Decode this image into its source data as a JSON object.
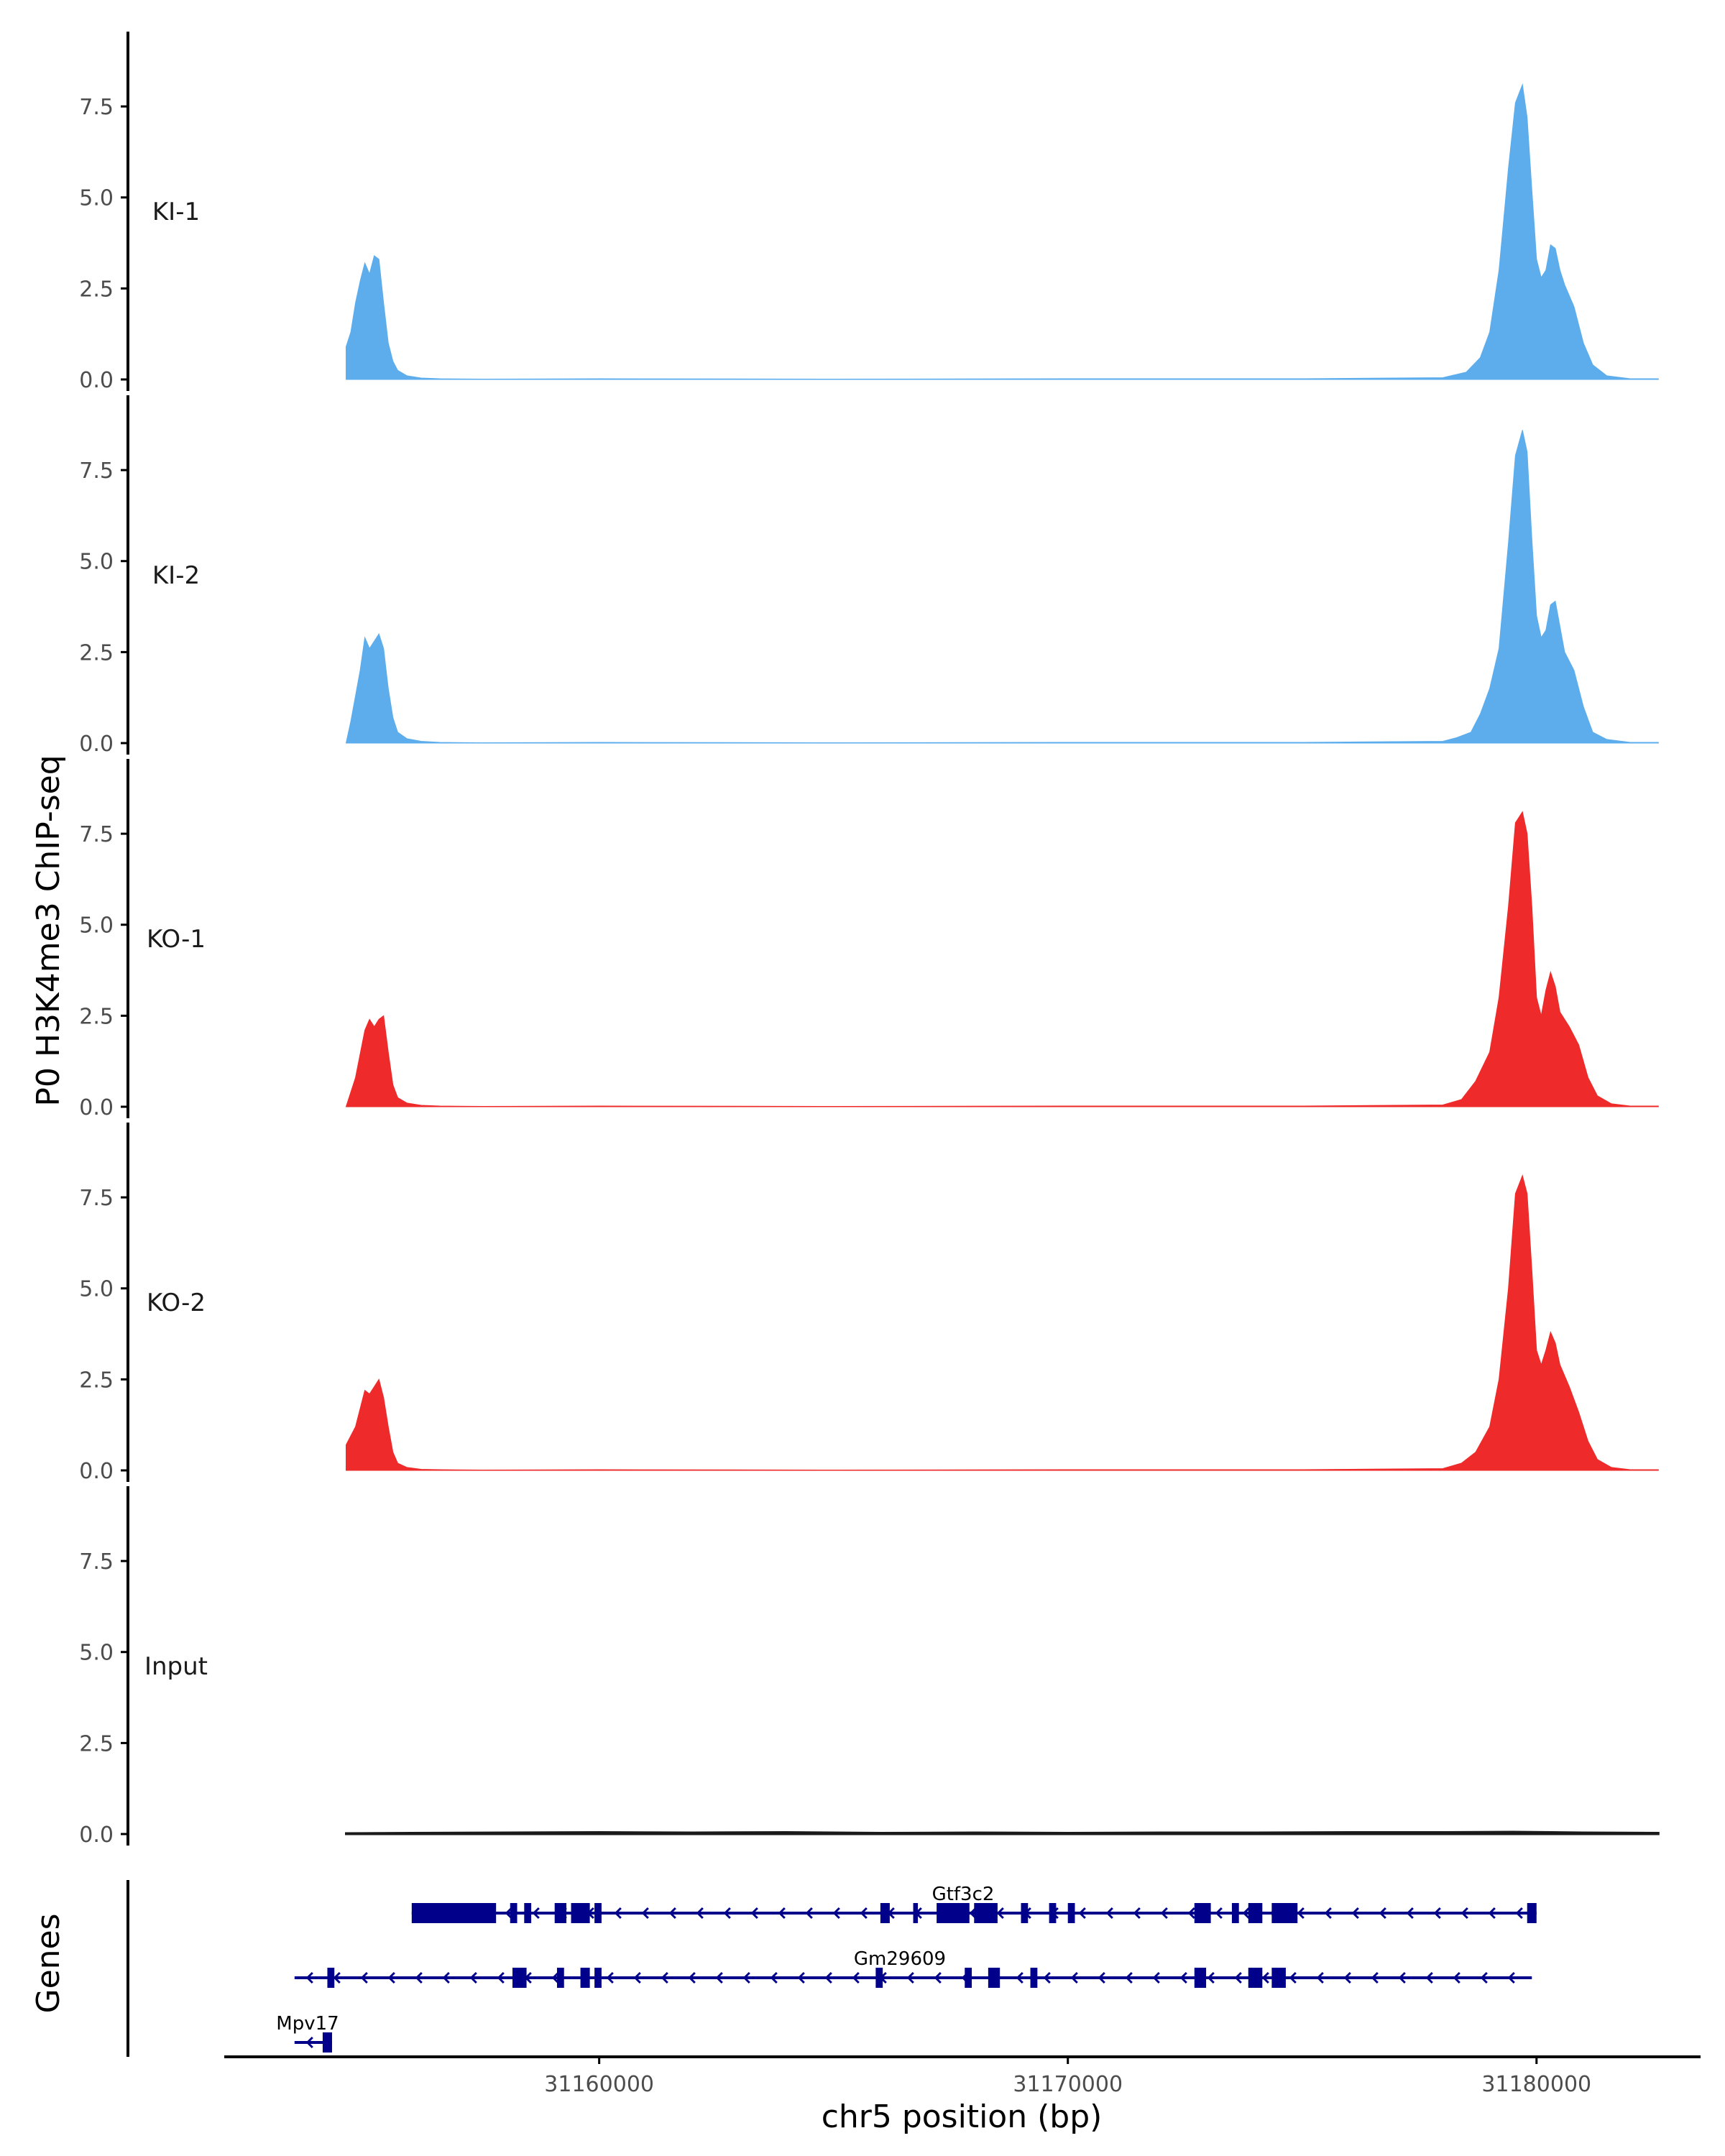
{
  "chart_data": {
    "type": "area",
    "ylabel": "P0 H3K4me3 ChIP-seq",
    "xlabel": "chr5 position (bp)",
    "genes_label": "Genes",
    "xlim": [
      31152000,
      31183500
    ],
    "ylim": [
      0,
      9.2
    ],
    "yticks": [
      0.0,
      2.5,
      5.0,
      7.5
    ],
    "ytick_labels": [
      "0.0",
      "2.5",
      "5.0",
      "7.5"
    ],
    "xticks": [
      31160000,
      31170000,
      31180000
    ],
    "xtick_labels": [
      "31160000",
      "31170000",
      "31180000"
    ],
    "series": [
      {
        "name": "KI-1",
        "color": "#5DADEC",
        "x": [
          31154600,
          31154700,
          31154800,
          31154900,
          31155000,
          31155100,
          31155200,
          31155300,
          31155400,
          31155500,
          31155600,
          31155700,
          31155900,
          31156200,
          31156600,
          31157500,
          31160000,
          31165000,
          31170000,
          31175000,
          31178000,
          31178500,
          31178800,
          31179000,
          31179200,
          31179400,
          31179550,
          31179700,
          31179800,
          31179900,
          31180000,
          31180100,
          31180200,
          31180300,
          31180400,
          31180500,
          31180600,
          31180800,
          31181000,
          31181200,
          31181500,
          31182000,
          31182600
        ],
        "y": [
          0.9,
          1.3,
          2.1,
          2.7,
          3.2,
          2.9,
          3.4,
          3.3,
          2.1,
          1.0,
          0.5,
          0.25,
          0.1,
          0.04,
          0.02,
          0.01,
          0.02,
          0.01,
          0.02,
          0.02,
          0.05,
          0.2,
          0.6,
          1.3,
          3.0,
          5.8,
          7.6,
          8.1,
          7.2,
          5.2,
          3.3,
          2.8,
          3.0,
          3.7,
          3.6,
          3.0,
          2.6,
          2.0,
          1.0,
          0.4,
          0.1,
          0.02,
          0.02
        ]
      },
      {
        "name": "KI-2",
        "color": "#5DADEC",
        "x": [
          31154600,
          31154700,
          31154800,
          31154900,
          31155000,
          31155100,
          31155200,
          31155300,
          31155400,
          31155500,
          31155600,
          31155700,
          31155900,
          31156200,
          31156600,
          31157500,
          31160000,
          31165000,
          31170000,
          31175000,
          31178000,
          31178300,
          31178600,
          31178800,
          31179000,
          31179200,
          31179400,
          31179550,
          31179700,
          31179800,
          31179900,
          31180000,
          31180100,
          31180200,
          31180300,
          31180400,
          31180500,
          31180600,
          31180800,
          31181000,
          31181200,
          31181500,
          31182000,
          31182600
        ],
        "y": [
          0.0,
          0.6,
          1.3,
          2.0,
          2.9,
          2.6,
          2.8,
          3.0,
          2.6,
          1.5,
          0.7,
          0.3,
          0.12,
          0.05,
          0.02,
          0.01,
          0.02,
          0.01,
          0.02,
          0.02,
          0.05,
          0.15,
          0.3,
          0.8,
          1.5,
          2.6,
          5.5,
          7.9,
          8.6,
          8.0,
          5.6,
          3.5,
          2.9,
          3.1,
          3.8,
          3.9,
          3.2,
          2.5,
          2.0,
          1.0,
          0.3,
          0.1,
          0.02,
          0.02
        ]
      },
      {
        "name": "KO-1",
        "color": "#EE2A2A",
        "x": [
          31154600,
          31154800,
          31155000,
          31155100,
          31155200,
          31155300,
          31155400,
          31155500,
          31155600,
          31155700,
          31155900,
          31156200,
          31156600,
          31157500,
          31160000,
          31165000,
          31170000,
          31175000,
          31178000,
          31178400,
          31178700,
          31179000,
          31179200,
          31179400,
          31179550,
          31179700,
          31179800,
          31179900,
          31180000,
          31180100,
          31180200,
          31180300,
          31180400,
          31180500,
          31180700,
          31180900,
          31181100,
          31181300,
          31181600,
          31182000,
          31182600
        ],
        "y": [
          0.0,
          0.8,
          2.1,
          2.4,
          2.2,
          2.4,
          2.5,
          1.5,
          0.6,
          0.25,
          0.1,
          0.04,
          0.02,
          0.01,
          0.02,
          0.01,
          0.02,
          0.02,
          0.05,
          0.2,
          0.7,
          1.5,
          3.0,
          5.5,
          7.8,
          8.1,
          7.5,
          5.5,
          3.0,
          2.5,
          3.2,
          3.7,
          3.3,
          2.6,
          2.2,
          1.7,
          0.8,
          0.3,
          0.08,
          0.02,
          0.02
        ]
      },
      {
        "name": "KO-2",
        "color": "#EE2A2A",
        "x": [
          31154600,
          31154800,
          31155000,
          31155100,
          31155200,
          31155300,
          31155400,
          31155500,
          31155600,
          31155700,
          31155900,
          31156200,
          31156600,
          31157500,
          31160000,
          31165000,
          31170000,
          31175000,
          31178000,
          31178400,
          31178700,
          31179000,
          31179200,
          31179400,
          31179550,
          31179700,
          31179800,
          31179900,
          31180000,
          31180100,
          31180200,
          31180300,
          31180400,
          31180500,
          31180700,
          31180900,
          31181100,
          31181300,
          31181600,
          31182000,
          31182600
        ],
        "y": [
          0.7,
          1.2,
          2.2,
          2.1,
          2.3,
          2.5,
          2.0,
          1.2,
          0.5,
          0.2,
          0.08,
          0.03,
          0.02,
          0.01,
          0.02,
          0.01,
          0.02,
          0.02,
          0.05,
          0.2,
          0.5,
          1.2,
          2.5,
          5.0,
          7.6,
          8.1,
          7.6,
          5.5,
          3.3,
          2.9,
          3.3,
          3.8,
          3.5,
          2.9,
          2.3,
          1.6,
          0.8,
          0.3,
          0.08,
          0.02,
          0.02
        ]
      },
      {
        "name": "Input",
        "color": "#1a1a1a",
        "x": [
          31154600,
          31156000,
          31158000,
          31160000,
          31162000,
          31164000,
          31166000,
          31168000,
          31170000,
          31172000,
          31174000,
          31176000,
          31178000,
          31179500,
          31181000,
          31182600
        ],
        "y": [
          0.02,
          0.03,
          0.04,
          0.05,
          0.04,
          0.05,
          0.03,
          0.04,
          0.03,
          0.04,
          0.04,
          0.05,
          0.05,
          0.06,
          0.04,
          0.03
        ]
      }
    ],
    "genes": [
      {
        "name": "Gtf3c2",
        "row": 0,
        "start": 31156000,
        "end": 31180000,
        "strand": "-",
        "exons": [
          [
            31156000,
            31157800
          ],
          [
            31158100,
            31158250
          ],
          [
            31158400,
            31158550
          ],
          [
            31159050,
            31159300
          ],
          [
            31159400,
            31159800
          ],
          [
            31159900,
            31160050
          ],
          [
            31166000,
            31166200
          ],
          [
            31166700,
            31166800
          ],
          [
            31167200,
            31167900
          ],
          [
            31168000,
            31168500
          ],
          [
            31169000,
            31169150
          ],
          [
            31169600,
            31169750
          ],
          [
            31170000,
            31170150
          ],
          [
            31172700,
            31173050
          ],
          [
            31173500,
            31173650
          ],
          [
            31173850,
            31174150
          ],
          [
            31174350,
            31174900
          ],
          [
            31179800,
            31180000
          ]
        ]
      },
      {
        "name": "Gm29609",
        "row": 1,
        "start": 31153500,
        "end": 31179900,
        "strand": "-",
        "exons": [
          [
            31154200,
            31154350
          ],
          [
            31158150,
            31158450
          ],
          [
            31159100,
            31159250
          ],
          [
            31159600,
            31159800
          ],
          [
            31159900,
            31160050
          ],
          [
            31165900,
            31166050
          ],
          [
            31167800,
            31167950
          ],
          [
            31168300,
            31168550
          ],
          [
            31169200,
            31169350
          ],
          [
            31172700,
            31172950
          ],
          [
            31173850,
            31174150
          ],
          [
            31174350,
            31174650
          ]
        ]
      },
      {
        "name": "Mpv17",
        "row": 2,
        "start": 31153500,
        "end": 31154300,
        "strand": "-",
        "exons": [
          [
            31154100,
            31154300
          ]
        ]
      }
    ],
    "gene_color": "#00008B",
    "grid": false
  }
}
